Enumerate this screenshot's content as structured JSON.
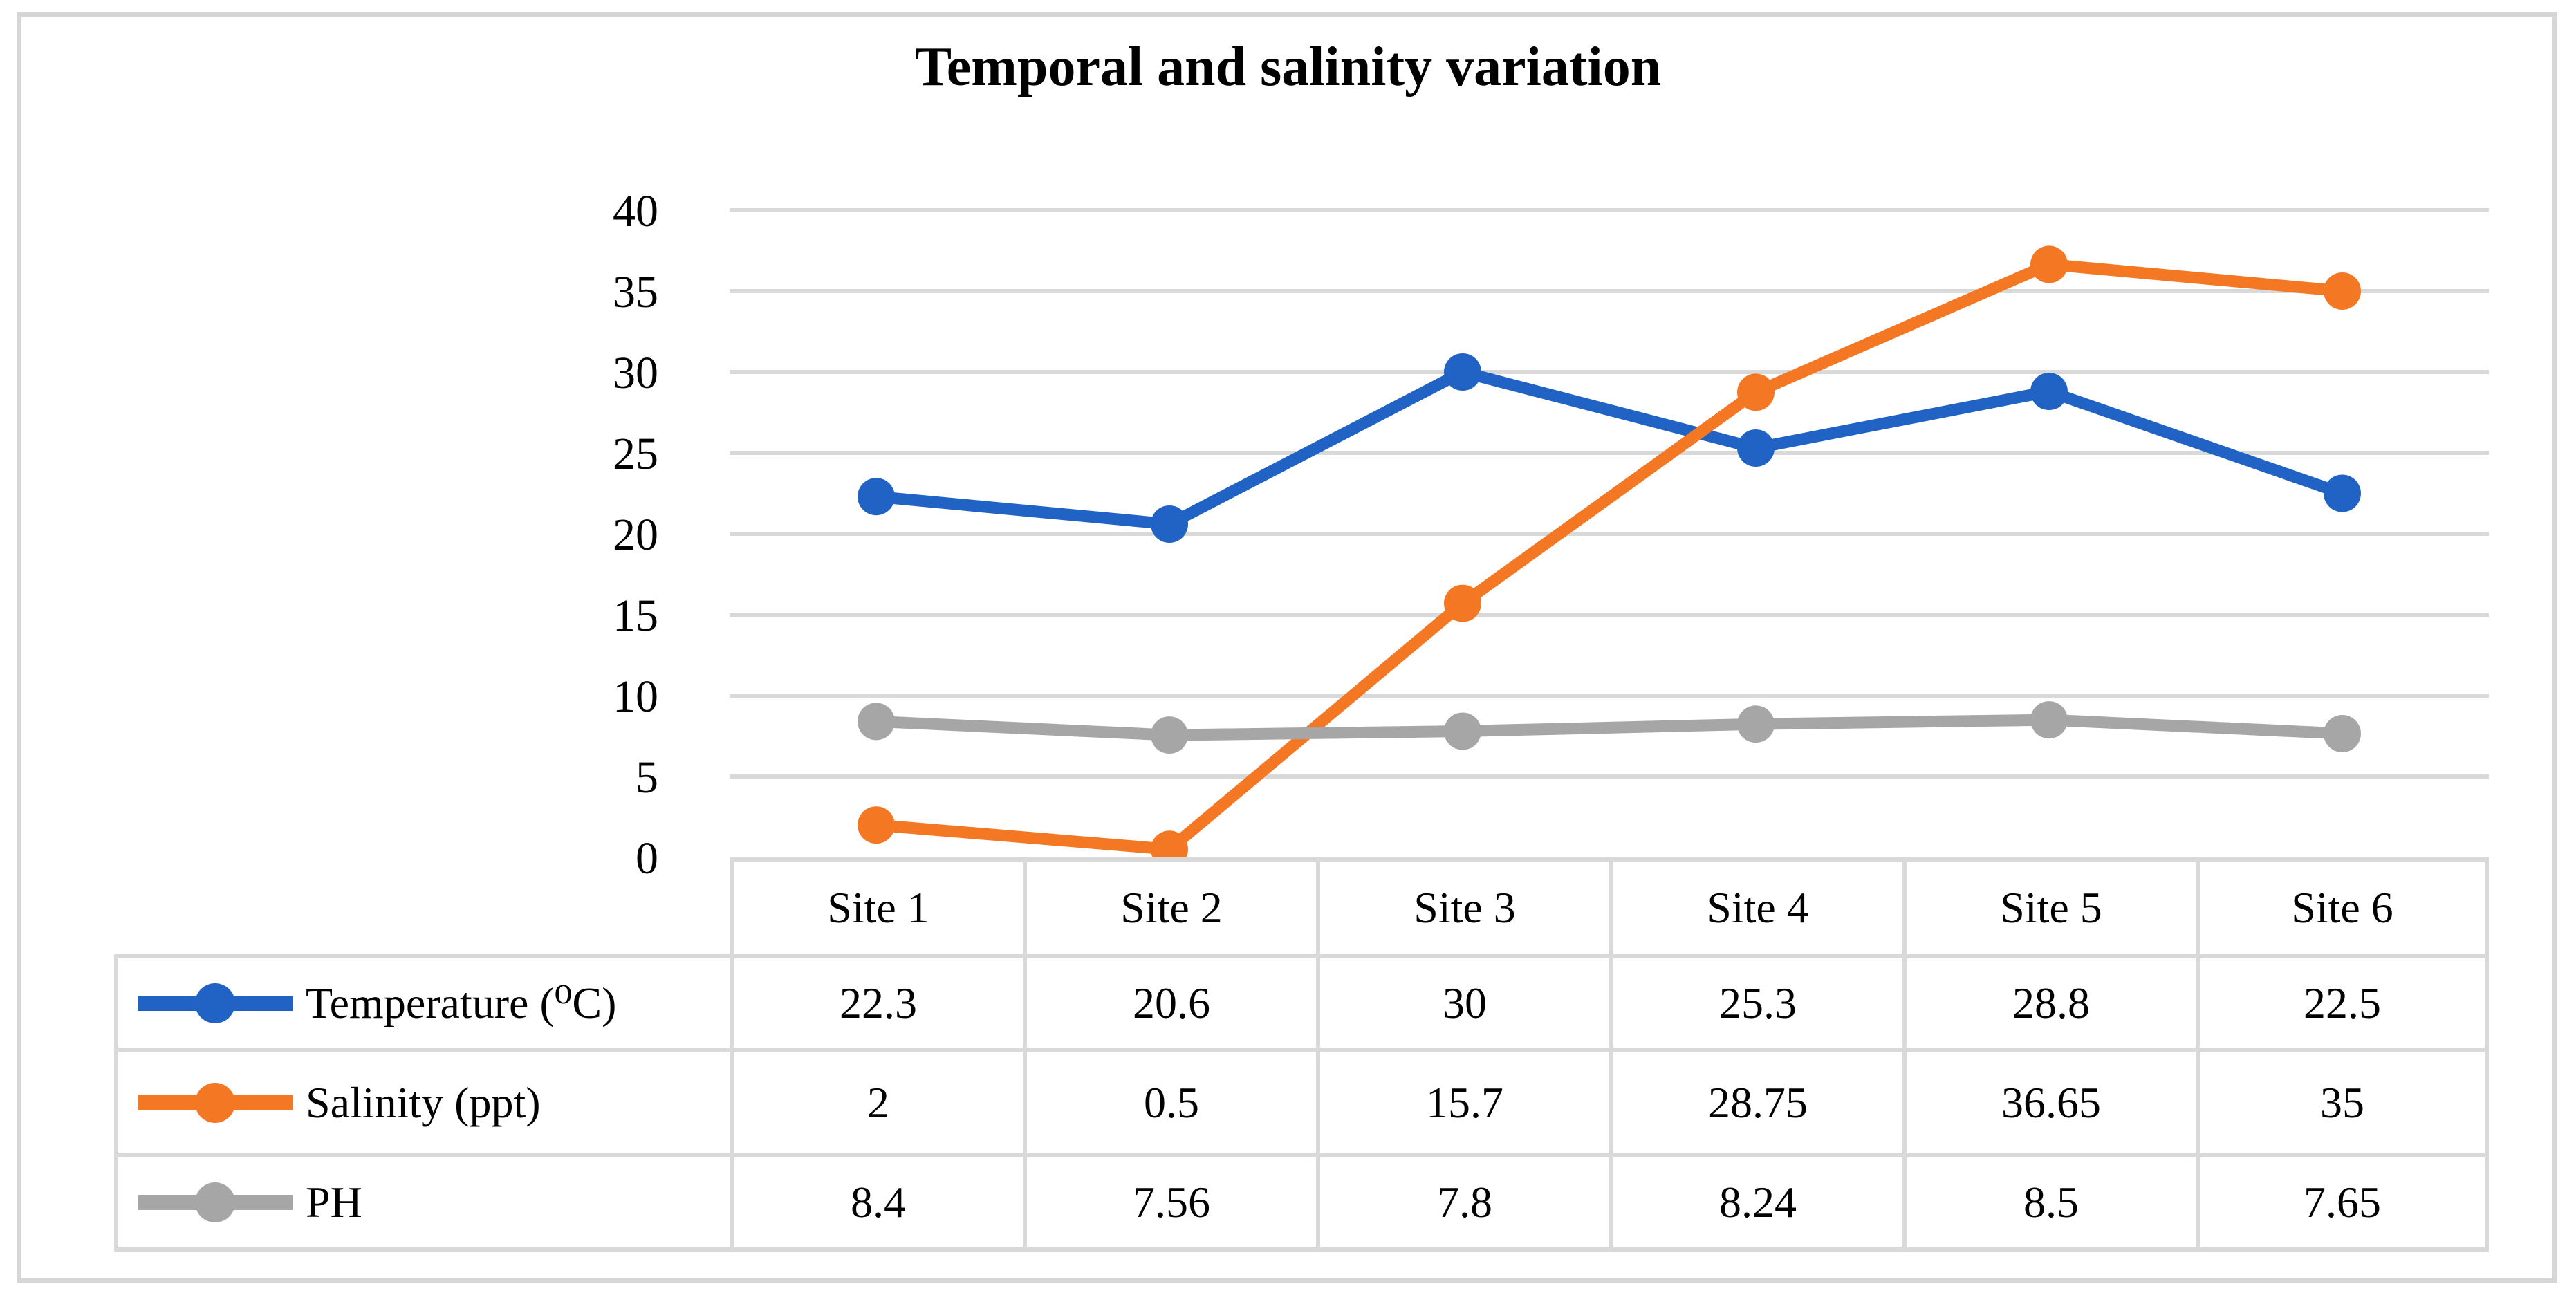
{
  "figure": {
    "kind": "line chart with data table",
    "title": "Temporal and salinity variation"
  },
  "chart_data": {
    "type": "line",
    "title": "Temporal and salinity variation",
    "categories": [
      "Site 1",
      "Site 2",
      "Site 3",
      "Site 4",
      "Site 5",
      "Site 6"
    ],
    "series": [
      {
        "name": "Temperature (⁰C)",
        "color": "#2063c5",
        "values": [
          22.3,
          20.6,
          30,
          25.3,
          28.8,
          22.5
        ]
      },
      {
        "name": "Salinity (ppt)",
        "color": "#f47723",
        "values": [
          2,
          0.5,
          15.7,
          28.75,
          36.65,
          35
        ]
      },
      {
        "name": "PH",
        "color": "#a6a6a6",
        "values": [
          8.4,
          7.56,
          7.8,
          8.24,
          8.5,
          7.65
        ]
      }
    ],
    "y_axis": {
      "min": 0,
      "max": 40,
      "step": 5,
      "ticks": [
        0,
        5,
        10,
        15,
        20,
        25,
        30,
        35,
        40
      ]
    },
    "x_axis": {
      "labels_shown_in": "data-table-header"
    },
    "grid": true,
    "legend_position": "data-table-left-column",
    "colors": {
      "gridline": "#d9d9d9",
      "table_border": "#d9d9d9",
      "outer_border": "#d6d6d6",
      "text": "#000000",
      "background": "#ffffff"
    }
  }
}
